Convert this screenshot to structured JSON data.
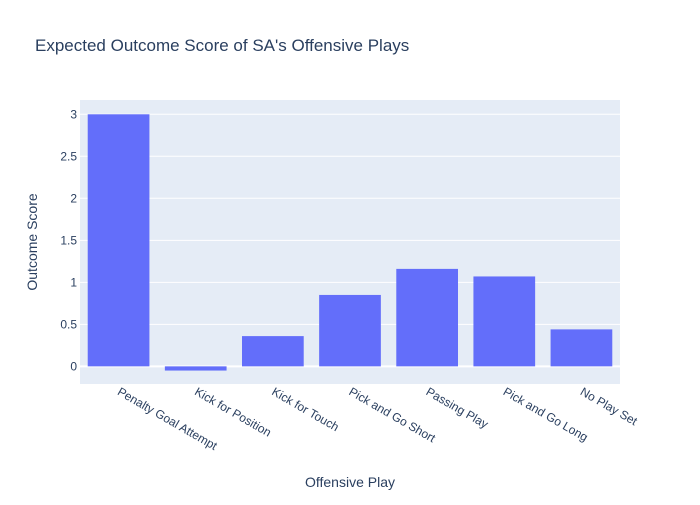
{
  "chart_data": {
    "type": "bar",
    "title": "Expected Outcome Score of SA's Offensive Plays",
    "xlabel": "Offensive Play",
    "ylabel": "Outcome Score",
    "categories": [
      "Penalty Goal Attempt",
      "Kick for Position",
      "Kick for Touch",
      "Pick and Go Short",
      "Passing Play",
      "Pick and Go Long",
      "No Play Set"
    ],
    "values": [
      3.0,
      -0.05,
      0.36,
      0.85,
      1.16,
      1.07,
      0.44
    ],
    "ylim": [
      -0.21,
      3.17
    ],
    "yticks": [
      0,
      0.5,
      1,
      1.5,
      2,
      2.5,
      3
    ],
    "ytick_labels": [
      "0",
      "0.5",
      "1",
      "1.5",
      "2",
      "2.5",
      "3"
    ],
    "grid": true,
    "colors": {
      "bar": "#636efa",
      "plot_bg": "#e5ecf6",
      "grid": "#ffffff",
      "text": "#2a3f5f"
    }
  }
}
